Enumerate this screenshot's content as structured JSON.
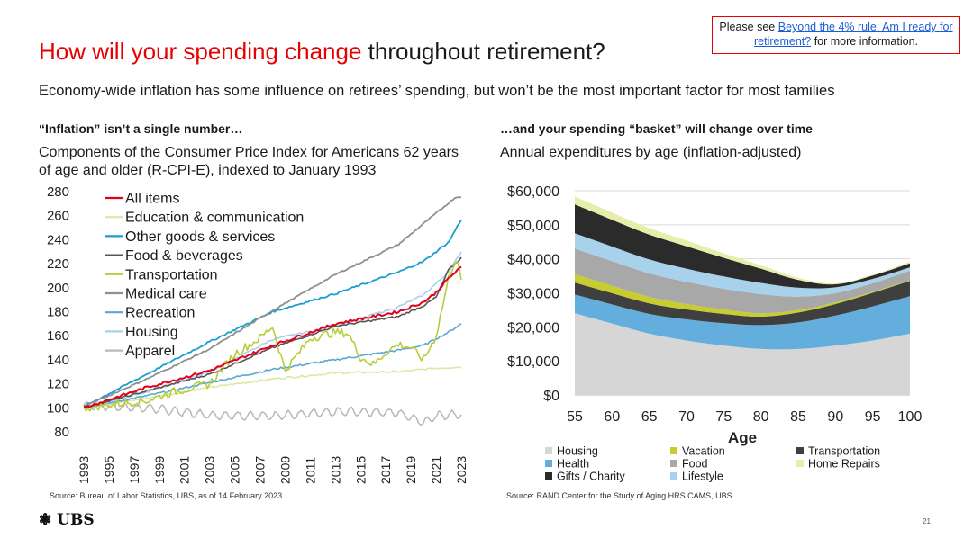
{
  "header": {
    "title_red": "How will your spending change",
    "title_black": " throughout retirement?",
    "subtitle": "Economy-wide inflation has some influence on retirees’ spending, but won’t be the most important factor for most families"
  },
  "note": {
    "prefix": "Please see ",
    "link_text": "Beyond the 4% rule: Am I ready for retirement?",
    "suffix": " for more information."
  },
  "footer": {
    "logo": "UBS",
    "page_number": "21"
  },
  "chart_data": [
    {
      "type": "line",
      "heading": "“Inflation” isn’t a single number…",
      "title": "Components of the Consumer Price Index for Americans 62 years of age and older (R-CPI-E), indexed to January 1993",
      "source": "Source: Bureau of Labor Statistics, UBS, as of 14 February 2023.",
      "xlabel": "",
      "ylabel": "",
      "ylim": [
        80,
        280
      ],
      "y_ticks": [
        "80",
        "100",
        "120",
        "140",
        "160",
        "180",
        "200",
        "220",
        "240",
        "260",
        "280"
      ],
      "x_ticks": [
        "1993",
        "1995",
        "1997",
        "1999",
        "2001",
        "2003",
        "2005",
        "2007",
        "2009",
        "2011",
        "2013",
        "2015",
        "2017",
        "2019",
        "2021",
        "2023"
      ],
      "series": [
        {
          "name": "All items",
          "color": "#e3001b",
          "width": 2,
          "kind": "trend",
          "points": [
            [
              1993,
              100
            ],
            [
              1998,
              117
            ],
            [
              2003,
              131
            ],
            [
              2008,
              152
            ],
            [
              2013,
              170
            ],
            [
              2018,
              180
            ],
            [
              2020,
              188
            ],
            [
              2021,
              196
            ],
            [
              2022,
              208
            ],
            [
              2023,
              217
            ]
          ]
        },
        {
          "name": "Education & communication",
          "color": "#dde8a6",
          "width": 1.6,
          "kind": "trend",
          "points": [
            [
              1993,
              100
            ],
            [
              1998,
              108
            ],
            [
              2003,
              117
            ],
            [
              2008,
              124
            ],
            [
              2013,
              129
            ],
            [
              2018,
              130
            ],
            [
              2021,
              133
            ],
            [
              2023,
              134
            ]
          ]
        },
        {
          "name": "Other goods & services",
          "color": "#1a9ed1",
          "width": 1.8,
          "kind": "trend",
          "points": [
            [
              1993,
              101
            ],
            [
              1998,
              128
            ],
            [
              2003,
              155
            ],
            [
              2008,
              180
            ],
            [
              2013,
              195
            ],
            [
              2018,
              213
            ],
            [
              2020,
              222
            ],
            [
              2022,
              238
            ],
            [
              2023,
              257
            ]
          ]
        },
        {
          "name": "Food & beverages",
          "color": "#555555",
          "width": 1.6,
          "kind": "trend",
          "points": [
            [
              1993,
              100
            ],
            [
              1998,
              114
            ],
            [
              2003,
              128
            ],
            [
              2008,
              150
            ],
            [
              2013,
              168
            ],
            [
              2018,
              176
            ],
            [
              2020,
              185
            ],
            [
              2021,
              192
            ],
            [
              2022,
              215
            ],
            [
              2023,
              225
            ]
          ]
        },
        {
          "name": "Transportation",
          "color": "#b9cc3a",
          "width": 1.6,
          "kind": "transport",
          "points": [
            [
              1993,
              100
            ],
            [
              1998,
              106
            ],
            [
              2000,
              113
            ],
            [
              2003,
              120
            ],
            [
              2005,
              145
            ],
            [
              2007,
              158
            ],
            [
              2008,
              168
            ],
            [
              2009,
              131
            ],
            [
              2011,
              158
            ],
            [
              2013,
              163
            ],
            [
              2014,
              162
            ],
            [
              2015,
              142
            ],
            [
              2016,
              136
            ],
            [
              2017,
              146
            ],
            [
              2018,
              153
            ],
            [
              2019,
              150
            ],
            [
              2020,
              140
            ],
            [
              2021,
              160
            ],
            [
              2022,
              208
            ],
            [
              2022.6,
              226
            ],
            [
              2023,
              205
            ]
          ]
        },
        {
          "name": "Medical care",
          "color": "#8f8f8f",
          "width": 1.8,
          "kind": "trend",
          "points": [
            [
              1993,
              101
            ],
            [
              1998,
              124
            ],
            [
              2003,
              149
            ],
            [
              2008,
              181
            ],
            [
              2013,
              211
            ],
            [
              2018,
              236
            ],
            [
              2021,
              262
            ],
            [
              2022.5,
              275
            ],
            [
              2023,
              276
            ]
          ]
        },
        {
          "name": "Recreation",
          "color": "#5aa7d6",
          "width": 1.6,
          "kind": "trend",
          "points": [
            [
              1993,
              100
            ],
            [
              1998,
              110
            ],
            [
              2003,
              121
            ],
            [
              2008,
              132
            ],
            [
              2013,
              140
            ],
            [
              2018,
              148
            ],
            [
              2020,
              152
            ],
            [
              2022,
              163
            ],
            [
              2023,
              170
            ]
          ]
        },
        {
          "name": "Housing",
          "color": "#a9d0ea",
          "width": 1.6,
          "kind": "trend",
          "points": [
            [
              1993,
              100
            ],
            [
              1998,
              113
            ],
            [
              2003,
              130
            ],
            [
              2008,
              157
            ],
            [
              2013,
              168
            ],
            [
              2018,
              184
            ],
            [
              2020,
              194
            ],
            [
              2022,
              213
            ],
            [
              2023,
              230
            ]
          ]
        },
        {
          "name": "Apparel",
          "color": "#b8b8b8",
          "width": 1.5,
          "kind": "apparel",
          "points": [
            [
              1993,
              102
            ],
            [
              1998,
              100
            ],
            [
              2003,
              94
            ],
            [
              2008,
              93
            ],
            [
              2013,
              97
            ],
            [
              2018,
              96
            ],
            [
              2020,
              88
            ],
            [
              2021,
              93
            ],
            [
              2023,
              95
            ]
          ]
        }
      ]
    },
    {
      "type": "area",
      "heading": "…and your spending “basket” will change over time",
      "title": "Annual expenditures by age (inflation-adjusted)",
      "source": "Source: RAND Center for the Study of Aging HRS CAMS, UBS",
      "xlabel": "Age",
      "ylabel": "",
      "ylim": [
        0,
        60000
      ],
      "y_ticks": [
        "$0",
        "$10,000",
        "$20,000",
        "$30,000",
        "$40,000",
        "$50,000",
        "$60,000"
      ],
      "x": [
        55,
        60,
        65,
        70,
        75,
        80,
        85,
        90,
        95,
        100
      ],
      "x_ticks": [
        "55",
        "60",
        "65",
        "70",
        "75",
        "80",
        "85",
        "90",
        "95",
        "100"
      ],
      "legend_labels": [
        "Housing",
        "Vacation",
        "Transportation",
        "Health",
        "Food",
        "Home Repairs",
        "Gifts / Charity",
        "Lifestyle"
      ],
      "series": [
        {
          "name": "Housing",
          "color": "#d6d6d6",
          "values": [
            24000,
            21000,
            18000,
            16000,
            14500,
            13500,
            13500,
            14500,
            16000,
            18000
          ]
        },
        {
          "name": "Health",
          "color": "#63aedd",
          "values": [
            5500,
            5600,
            5800,
            6200,
            6600,
            7000,
            7800,
            8800,
            10000,
            11000
          ]
        },
        {
          "name": "Transportation",
          "color": "#3f3f3f",
          "values": [
            3500,
            3300,
            3100,
            2900,
            2700,
            2500,
            2900,
            3400,
            4000,
            4500
          ]
        },
        {
          "name": "Vacation",
          "color": "#c7cd2e",
          "values": [
            2500,
            2200,
            1900,
            1600,
            1300,
            1000,
            700,
            500,
            300,
            200
          ]
        },
        {
          "name": "Food",
          "color": "#a8a8a8",
          "values": [
            7500,
            7200,
            6900,
            6500,
            6100,
            5600,
            4000,
            2700,
            2500,
            2800
          ]
        },
        {
          "name": "Lifestyle",
          "color": "#a8d2ec",
          "values": [
            4500,
            4300,
            4100,
            3900,
            3600,
            3300,
            2600,
            1700,
            1300,
            1000
          ]
        },
        {
          "name": "Gifts / Charity",
          "color": "#2b2b2b",
          "values": [
            8500,
            7900,
            7300,
            6600,
            5500,
            4200,
            2300,
            900,
            1000,
            1200
          ]
        },
        {
          "name": "Home Repairs",
          "color": "#e7eeaa",
          "values": [
            2300,
            2100,
            1900,
            1700,
            1300,
            1000,
            600,
            300,
            200,
            500
          ]
        }
      ]
    }
  ]
}
